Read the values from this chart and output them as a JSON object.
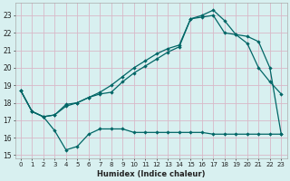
{
  "xlabel": "Humidex (Indice chaleur)",
  "bg_color": "#d8f0f0",
  "grid_color": "#c8e8e8",
  "line_color": "#006666",
  "xlim": [
    -0.5,
    23.5
  ],
  "ylim": [
    14.8,
    23.7
  ],
  "yticks": [
    15,
    16,
    17,
    18,
    19,
    20,
    21,
    22,
    23
  ],
  "xticks": [
    0,
    1,
    2,
    3,
    4,
    5,
    6,
    7,
    8,
    9,
    10,
    11,
    12,
    13,
    14,
    15,
    16,
    17,
    18,
    19,
    20,
    21,
    22,
    23
  ],
  "series1_x": [
    0,
    1,
    2,
    3,
    4,
    5,
    6,
    7,
    8,
    9,
    10,
    11,
    12,
    13,
    14,
    15,
    16,
    17,
    18,
    19,
    20,
    21,
    22,
    23
  ],
  "series1_y": [
    18.7,
    17.5,
    17.2,
    16.4,
    15.3,
    15.5,
    16.2,
    16.5,
    16.5,
    16.5,
    16.3,
    16.3,
    16.3,
    16.3,
    16.3,
    16.3,
    16.3,
    16.2,
    16.2,
    16.2,
    16.2,
    16.2,
    16.2,
    16.2
  ],
  "series2_x": [
    0,
    1,
    2,
    3,
    4,
    5,
    6,
    7,
    8,
    9,
    10,
    11,
    12,
    13,
    14,
    15,
    16,
    17,
    18,
    19,
    20,
    21,
    22,
    23
  ],
  "series2_y": [
    18.7,
    17.5,
    17.2,
    17.3,
    17.8,
    18.0,
    18.3,
    18.5,
    18.6,
    19.2,
    19.7,
    20.1,
    20.5,
    20.9,
    21.2,
    22.8,
    23.0,
    23.3,
    22.7,
    21.9,
    21.4,
    20.0,
    19.2,
    18.5
  ],
  "series3_x": [
    0,
    1,
    2,
    3,
    4,
    5,
    6,
    7,
    8,
    9,
    10,
    11,
    12,
    13,
    14,
    15,
    16,
    17,
    18,
    19,
    20,
    21,
    22,
    23
  ],
  "series3_y": [
    18.7,
    17.5,
    17.2,
    17.3,
    17.9,
    18.0,
    18.3,
    18.6,
    19.0,
    19.5,
    20.0,
    20.4,
    20.8,
    21.1,
    21.3,
    22.8,
    22.9,
    23.0,
    22.0,
    21.9,
    21.8,
    21.5,
    20.0,
    16.2
  ]
}
